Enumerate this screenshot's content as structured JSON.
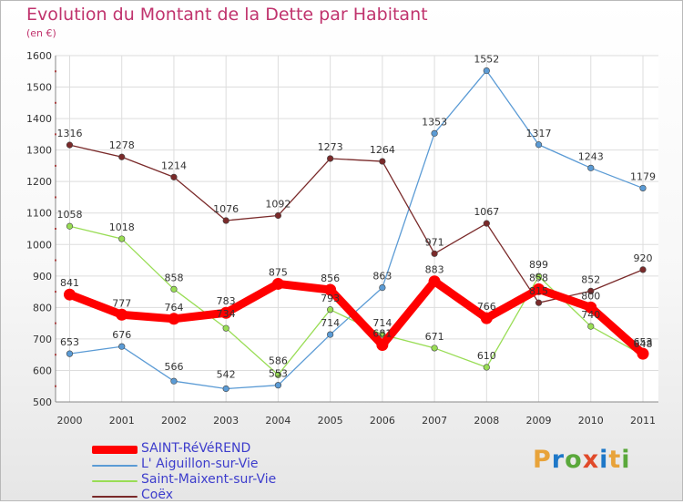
{
  "header": {
    "title": "Evolution du Montant de la Dette par Habitant",
    "subtitle": "(en €)"
  },
  "logo": {
    "text": "Proxiti",
    "colors": [
      "#e8a33a",
      "#1e78c8",
      "#5aa83b",
      "#e04a2a",
      "#1e78c8",
      "#e8a33a",
      "#5aa83b"
    ]
  },
  "chart_data": {
    "type": "line",
    "x": [
      "2000",
      "2001",
      "2002",
      "2003",
      "2004",
      "2005",
      "2006",
      "2007",
      "2008",
      "2009",
      "2010",
      "2011"
    ],
    "ylim": [
      500,
      1600
    ],
    "yticks": [
      "500",
      "600",
      "700",
      "800",
      "900",
      "1000",
      "1100",
      "1200",
      "1300",
      "1400",
      "1500",
      "1600"
    ],
    "grid": true,
    "legend_position": "bottom-left",
    "series": [
      {
        "name": "SAINT-RéVéREND",
        "color": "#ff0000",
        "values": [
          841,
          777,
          764,
          783,
          875,
          856,
          681,
          883,
          766,
          858,
          800,
          653
        ],
        "labels": [
          "841",
          "777",
          "764",
          "783",
          "875",
          "856",
          "681",
          "883",
          "766",
          "858",
          "800",
          "653"
        ],
        "emphasis": true
      },
      {
        "name": "L' Aiguillon-sur-Vie",
        "color": "#5b9bd5",
        "values": [
          653,
          676,
          566,
          542,
          553,
          714,
          863,
          1353,
          1552,
          1317,
          1243,
          1179
        ],
        "labels": [
          "653",
          "676",
          "566",
          "542",
          "553",
          "714",
          "863",
          "1353",
          "1552",
          "1317",
          "1243",
          "1179"
        ]
      },
      {
        "name": "Saint-Maixent-sur-Vie",
        "color": "#99dd55",
        "values": [
          1058,
          1018,
          858,
          734,
          586,
          793,
          714,
          671,
          610,
          899,
          740,
          648
        ],
        "labels": [
          "1058",
          "1018",
          "858",
          "734",
          "586",
          "793",
          "714",
          "671",
          "610",
          "899",
          "740",
          "648"
        ]
      },
      {
        "name": "Coëx",
        "color": "#7a2a2a",
        "values": [
          1316,
          1278,
          1214,
          1076,
          1092,
          1273,
          1264,
          971,
          1067,
          815,
          852,
          920
        ],
        "labels": [
          "1316",
          "1278",
          "1214",
          "1076",
          "1092",
          "1273",
          "1264",
          "971",
          "1067",
          "815",
          "852",
          "920"
        ]
      }
    ]
  }
}
